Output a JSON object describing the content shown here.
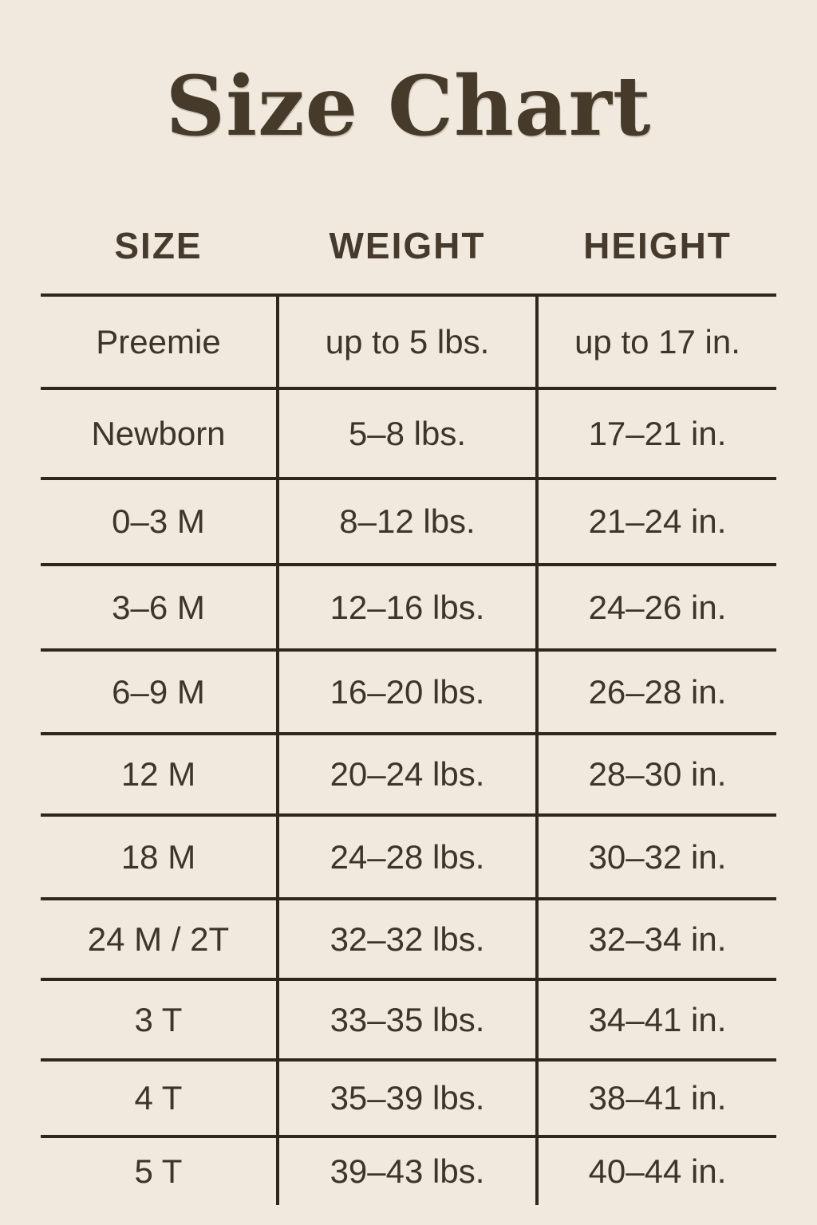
{
  "title": "Size Chart",
  "colors": {
    "background": "#f1e9dd",
    "title_text": "#463b2b",
    "table_text": "#3e342a",
    "grid_line": "#2f2719"
  },
  "chart_data": {
    "type": "table",
    "title": "Size Chart",
    "columns": [
      "SIZE",
      "WEIGHT",
      "HEIGHT"
    ],
    "rows": [
      [
        "Preemie",
        "up to 5 lbs.",
        "up to 17 in."
      ],
      [
        "Newborn",
        "5–8 lbs.",
        "17–21 in."
      ],
      [
        "0–3 M",
        "8–12 lbs.",
        "21–24 in."
      ],
      [
        "3–6 M",
        "12–16 lbs.",
        "24–26 in."
      ],
      [
        "6–9 M",
        "16–20 lbs.",
        "26–28 in."
      ],
      [
        "12 M",
        "20–24 lbs.",
        "28–30 in."
      ],
      [
        "18 M",
        "24–28 lbs.",
        "30–32 in."
      ],
      [
        "24 M / 2T",
        "32–32 lbs.",
        "32–34 in."
      ],
      [
        "3 T",
        "33–35 lbs.",
        "34–41 in."
      ],
      [
        "4 T",
        "35–39 lbs.",
        "38–41 in."
      ],
      [
        "5 T",
        "39–43 lbs.",
        "40–44 in."
      ]
    ],
    "layout": {
      "grid": "horizontal rules between all rows, vertical rules between columns, no outer border, no bottom rule",
      "legend": "none",
      "column_alignment": "center"
    }
  }
}
